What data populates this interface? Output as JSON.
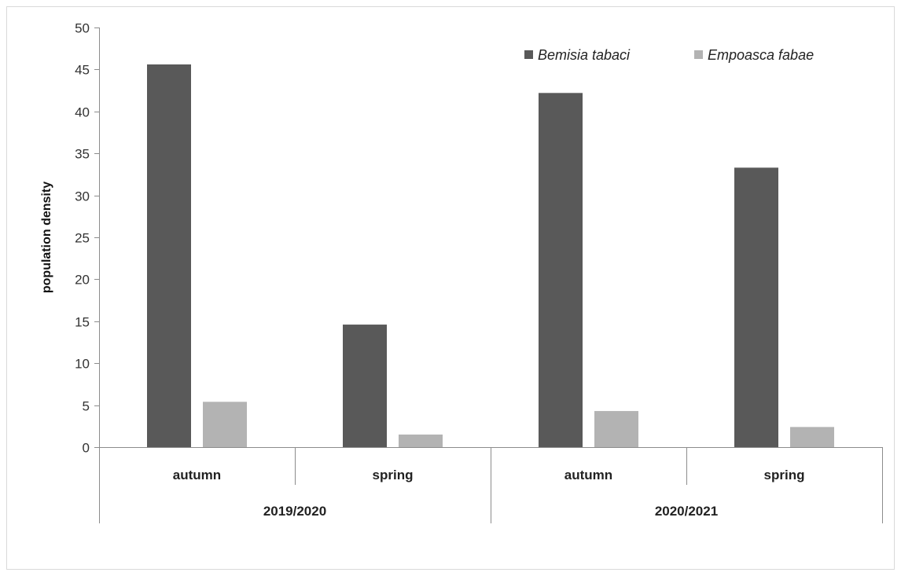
{
  "chart_data": {
    "type": "bar",
    "title": "",
    "ylabel": "population density",
    "xlabel": "",
    "ylim": [
      0,
      50
    ],
    "yticks": [
      0,
      5,
      10,
      15,
      20,
      25,
      30,
      35,
      40,
      45,
      50
    ],
    "categories": [
      "autumn",
      "spring",
      "autumn",
      "spring"
    ],
    "groups": [
      {
        "label": "2019/2020",
        "categories": [
          "autumn",
          "spring"
        ]
      },
      {
        "label": "2020/2021",
        "categories": [
          "autumn",
          "spring"
        ]
      }
    ],
    "series": [
      {
        "name": "Bemisia tabaci",
        "color": "#595959",
        "values": [
          45.6,
          14.6,
          42.2,
          33.3
        ]
      },
      {
        "name": "Empoasca fabae",
        "color": "#b3b3b3",
        "values": [
          5.4,
          1.5,
          4.3,
          2.4
        ]
      }
    ],
    "grid": false,
    "legend_position": "top-right"
  }
}
